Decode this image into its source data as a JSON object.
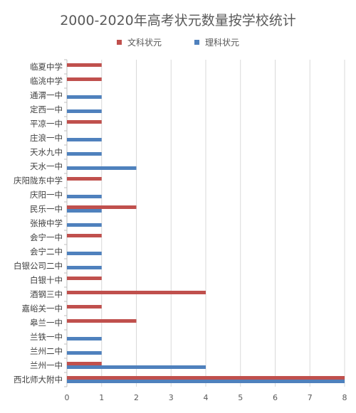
{
  "chart_data": {
    "type": "bar",
    "orientation": "horizontal",
    "title": "2000-2020年高考状元数量按学校统计",
    "categories": [
      "临夏中学",
      "临洮中学",
      "通渭一中",
      "定西一中",
      "平凉一中",
      "庄浪一中",
      "天水九中",
      "天水一中",
      "庆阳陇东中学",
      "庆阳一中",
      "民乐一中",
      "张掖中学",
      "会宁一中",
      "会宁二中",
      "白银公司二中",
      "白银十中",
      "酒钢三中",
      "嘉峪关一中",
      "皋兰一中",
      "兰铁一中",
      "兰州二中",
      "兰州一中",
      "西北师大附中"
    ],
    "series": [
      {
        "name": "文科状元",
        "color": "#c0504d",
        "values": [
          1,
          1,
          0,
          0,
          1,
          0,
          0,
          0,
          1,
          0,
          2,
          0,
          1,
          0,
          0,
          1,
          4,
          1,
          2,
          0,
          0,
          1,
          8
        ]
      },
      {
        "name": "理科状元",
        "color": "#4f81bd",
        "values": [
          0,
          0,
          1,
          1,
          0,
          1,
          1,
          2,
          0,
          1,
          1,
          1,
          0,
          1,
          1,
          0,
          0,
          0,
          0,
          1,
          1,
          4,
          8
        ]
      }
    ],
    "xlim": [
      0,
      8
    ],
    "xticks": [
      "0",
      "1",
      "2",
      "3",
      "4",
      "5",
      "6",
      "7",
      "8"
    ],
    "grid": true,
    "legend_position": "top"
  }
}
